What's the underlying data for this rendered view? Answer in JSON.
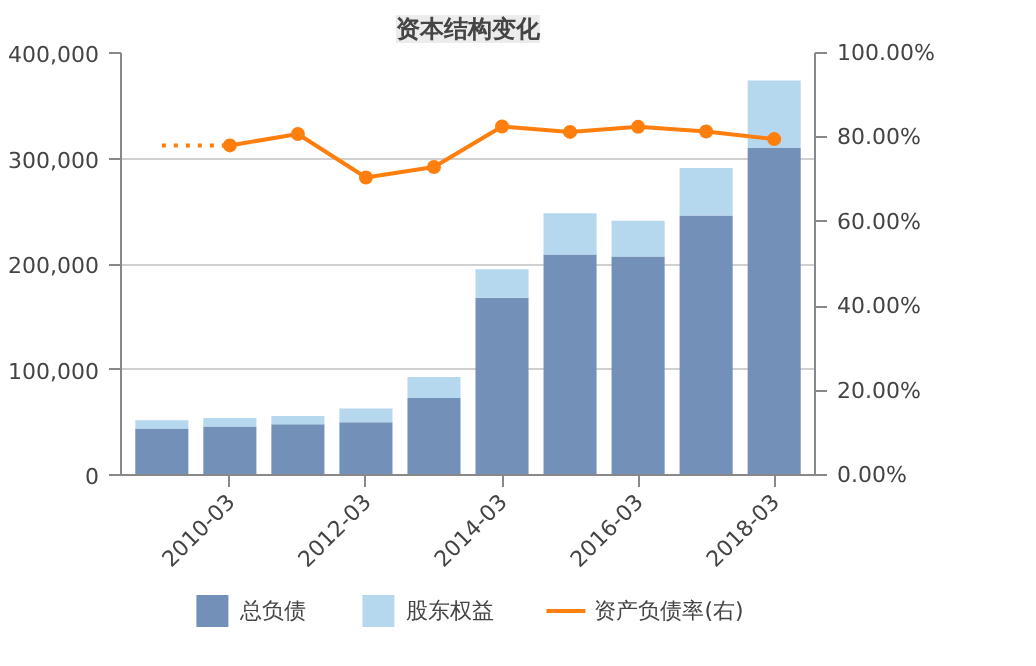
{
  "chart_data": {
    "type": "bar",
    "title": "资本结构变化",
    "stacked": true,
    "categories": [
      null,
      "2010-03",
      null,
      "2012-03",
      null,
      "2014-03",
      null,
      "2016-03",
      null,
      "2018-03"
    ],
    "series": [
      {
        "name": "总负债",
        "color": "#7390b8",
        "values": [
          44000,
          46000,
          48000,
          50000,
          73000,
          168000,
          209000,
          207000,
          246000,
          310000
        ]
      },
      {
        "name": "股东权益",
        "color": "#b6d8ef",
        "values": [
          8000,
          8000,
          8000,
          13000,
          20000,
          27000,
          39000,
          34000,
          45000,
          64000
        ]
      },
      {
        "name": "资产负债率(右)",
        "type": "line",
        "axis": "y2",
        "color": "#ff7f0e",
        "marker": "circle",
        "values": [
          null,
          78.1,
          80.8,
          70.5,
          73.0,
          82.6,
          81.3,
          82.5,
          81.4,
          79.6
        ]
      },
      {
        "type": "line",
        "axis": "y2",
        "color": "#ff7f0e",
        "line_style": "dotted",
        "values": [
          78.1,
          78.1,
          null,
          null,
          null,
          null,
          null,
          null,
          null,
          null
        ]
      }
    ],
    "ylim": [
      0,
      400000
    ],
    "yticks": [
      {
        "value": 0,
        "label": "0"
      },
      {
        "value": 100000,
        "label": "100,000"
      },
      {
        "value": 200000,
        "label": "200,000"
      },
      {
        "value": 300000,
        "label": "300,000"
      },
      {
        "value": 400000,
        "label": "400,000"
      }
    ],
    "y2lim": [
      0,
      100
    ],
    "y2ticks": [
      {
        "value": 0,
        "label": "0.00%"
      },
      {
        "value": 20,
        "label": "20.00%"
      },
      {
        "value": 40,
        "label": "40.00%"
      },
      {
        "value": 60,
        "label": "60.00%"
      },
      {
        "value": 80,
        "label": "80.00%"
      },
      {
        "value": 100,
        "label": "100.00%"
      }
    ],
    "grid": "y",
    "legend": "bottom"
  }
}
